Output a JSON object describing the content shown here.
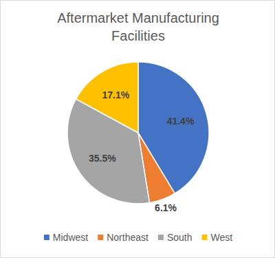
{
  "chart_data": {
    "type": "pie",
    "title": "Aftermarket Manufacturing Facilities",
    "categories": [
      "Midwest",
      "Northeast",
      "South",
      "West"
    ],
    "values": [
      41.4,
      6.1,
      35.5,
      17.1
    ],
    "value_labels": [
      "41.4%",
      "6.1%",
      "35.5%",
      "17.1%"
    ],
    "colors": [
      "#4472c4",
      "#ed7d31",
      "#a5a5a5",
      "#ffc000"
    ],
    "data_labels": true,
    "legend": "bottom"
  }
}
